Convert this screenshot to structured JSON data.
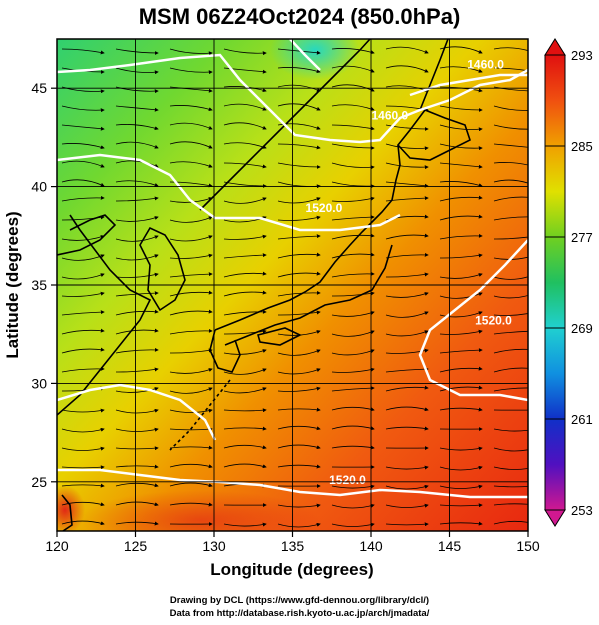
{
  "title": "MSM 06Z24Oct2024 (850.0hPa)",
  "chart_data": {
    "type": "heatmap",
    "title": "MSM 06Z24Oct2024 (850.0hPa)",
    "xlabel": "Longitude (degrees)",
    "ylabel": "Latitude  (degrees)",
    "xlim": [
      120,
      150
    ],
    "ylim": [
      22.5,
      47.5
    ],
    "xticks": [
      "120",
      "125",
      "130",
      "135",
      "140",
      "145",
      "150"
    ],
    "yticks": [
      "25",
      "30",
      "35",
      "40",
      "45"
    ],
    "grid": true,
    "colorbar": {
      "range": [
        253,
        293
      ],
      "tick_labels": [
        "293",
        "285",
        "277",
        "269",
        "261",
        "253"
      ],
      "colors": [
        "#d01890",
        "#5010c0",
        "#1030c8",
        "#1090e0",
        "#20d0d0",
        "#20c060",
        "#70d020",
        "#e0e000",
        "#f0a000",
        "#f05010",
        "#e01010"
      ]
    },
    "contours": [
      {
        "label": "1460.0",
        "lon": 141.2,
        "lat": 43.4
      },
      {
        "label": "1520.0",
        "lon": 137.0,
        "lat": 38.7
      },
      {
        "label": "1520.0",
        "lon": 147.8,
        "lat": 33.0
      },
      {
        "label": "1520.0",
        "lon": 138.5,
        "lat": 24.9
      },
      {
        "label": "1460.0",
        "lon": 147.3,
        "lat": 46.0
      }
    ]
  },
  "credits": {
    "line1": "Drawing by DCL (https://www.gfd-dennou.org/library/dcl/)",
    "line2": "Data from http://database.rish.kyoto-u.ac.jp/arch/jmadata/"
  }
}
